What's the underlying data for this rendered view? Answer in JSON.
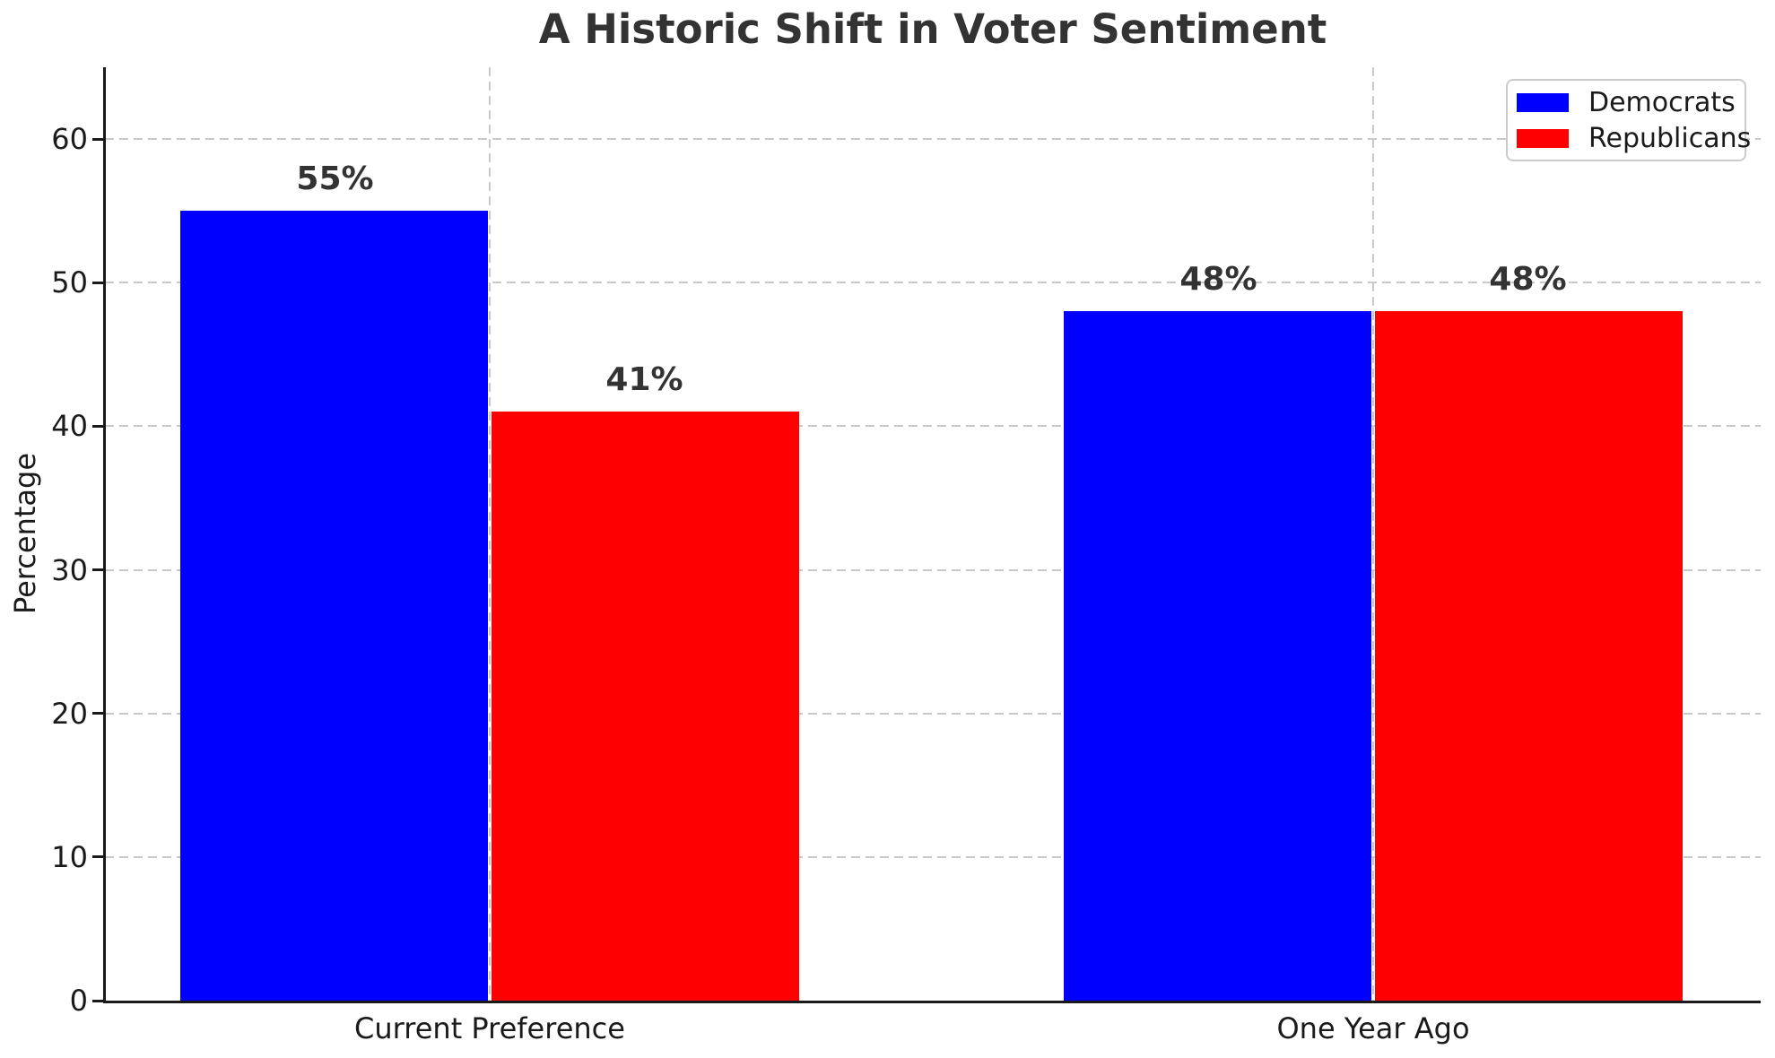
{
  "chart_data": {
    "type": "bar",
    "title": "A Historic Shift in Voter Sentiment",
    "xlabel": "",
    "ylabel": "Percentage",
    "categories": [
      "Current Preference",
      "One Year Ago"
    ],
    "series": [
      {
        "name": "Democrats",
        "color": "#0000ff",
        "values": [
          55,
          48
        ],
        "labels": [
          "55%",
          "48%"
        ]
      },
      {
        "name": "Republicans",
        "color": "#ff0000",
        "values": [
          41,
          48
        ],
        "labels": [
          "41%",
          "48%"
        ]
      }
    ],
    "yticks": [
      0,
      10,
      20,
      30,
      40,
      50,
      60
    ],
    "ylim": [
      0,
      65
    ],
    "grid": true,
    "grid_style": "dashed",
    "legend_position": "upper right",
    "text_color": "#333333",
    "axis_color": "#1a1a1a",
    "grid_color": "#c9c9c9"
  }
}
